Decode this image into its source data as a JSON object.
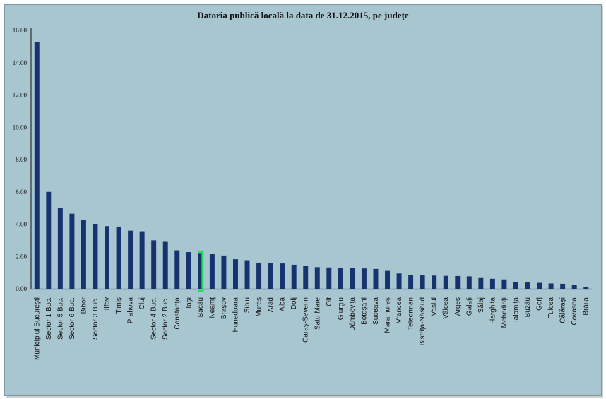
{
  "chart_data": {
    "type": "bar",
    "title": "Datoria publică locală la data de 31.12.2015, pe județe",
    "xlabel": "",
    "ylabel": "",
    "ylim": [
      0,
      16
    ],
    "yticks": [
      "0.00",
      "2.00",
      "4.00",
      "6.00",
      "8.00",
      "10.00",
      "12.00",
      "14.00",
      "16.00"
    ],
    "grid": false,
    "legend": "none",
    "bar_color": "#15336e",
    "background": "#a8c6d0",
    "highlight": {
      "category": "Bacău",
      "marker": "green-bracket",
      "color": "#22e05a"
    },
    "categories": [
      "Municipiul Bucureşti",
      "Sector 1 Buc.",
      "Sector 5 Buc.",
      "Sector 6 Buc.",
      "Bihor",
      "Sector 3 Buc.",
      "Ilfov",
      "Timiş",
      "Prahova",
      "Cluj",
      "Sector 4 Buc.",
      "Sector 2 Buc.",
      "Constanţa",
      "Iaşi",
      "Bacău",
      "Neamţ",
      "Braşov",
      "Hunedoara",
      "Sibiu",
      "Mureş",
      "Arad",
      "Alba",
      "Dolj",
      "Caraş-Severin",
      "Satu Mare",
      "Olt",
      "Giurgiu",
      "Dâmboviţa",
      "Botoşani",
      "Suceava",
      "Maramureş",
      "Vrancea",
      "Teleorman",
      "Bistriţa-Năsăud",
      "Vaslui",
      "Vâlcea",
      "Argeş",
      "Galaţi",
      "Sălaj",
      "Harghita",
      "Mehedinţi",
      "Ialomiţa",
      "Buzău",
      "Gorj",
      "Tulcea",
      "Călăraşi",
      "Covasna",
      "Brăila"
    ],
    "values": [
      15.3,
      6.0,
      5.0,
      4.65,
      4.25,
      4.02,
      3.88,
      3.85,
      3.6,
      3.56,
      3.0,
      2.95,
      2.38,
      2.27,
      2.22,
      2.15,
      2.06,
      1.83,
      1.77,
      1.62,
      1.58,
      1.57,
      1.49,
      1.4,
      1.34,
      1.32,
      1.31,
      1.28,
      1.26,
      1.23,
      1.11,
      0.95,
      0.87,
      0.86,
      0.82,
      0.8,
      0.79,
      0.77,
      0.71,
      0.62,
      0.58,
      0.41,
      0.39,
      0.37,
      0.33,
      0.31,
      0.24,
      0.1
    ]
  }
}
